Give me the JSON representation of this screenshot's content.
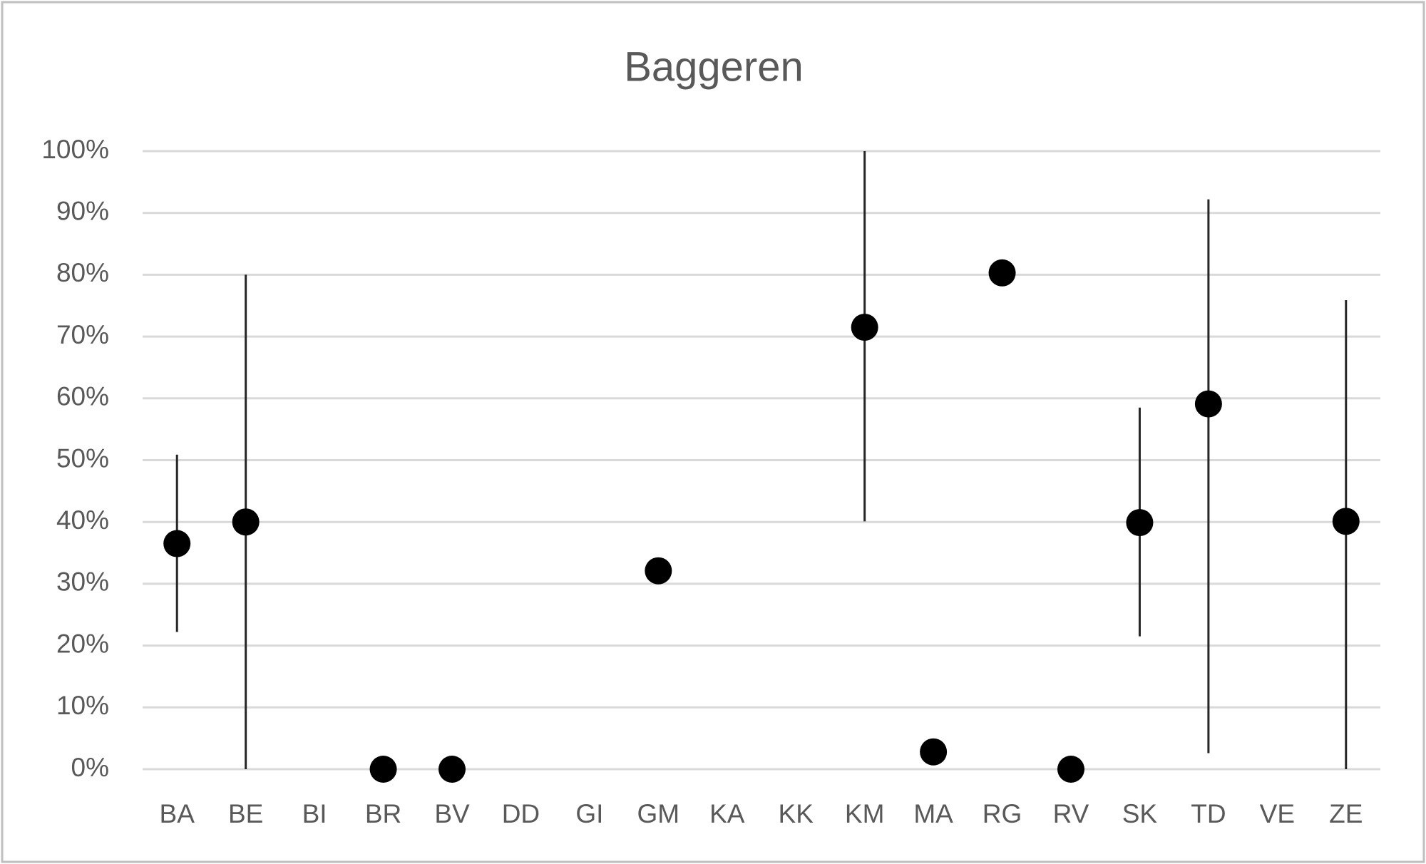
{
  "chart_data": {
    "type": "dot-errorbar",
    "title": "Baggeren",
    "categories": [
      "BA",
      "BE",
      "BI",
      "BR",
      "BV",
      "DD",
      "GI",
      "GM",
      "KA",
      "KK",
      "KM",
      "MA",
      "RG",
      "RV",
      "SK",
      "TD",
      "VE",
      "ZE"
    ],
    "values": [
      36.5,
      40,
      null,
      0,
      0,
      null,
      null,
      32.1,
      null,
      null,
      71.5,
      2.8,
      80.3,
      0,
      39.9,
      59.1,
      null,
      40.1
    ],
    "low": [
      22.2,
      0,
      null,
      null,
      null,
      null,
      null,
      null,
      null,
      null,
      40.1,
      null,
      null,
      null,
      21.5,
      2.6,
      null,
      0
    ],
    "high": [
      50.9,
      80,
      null,
      null,
      null,
      null,
      null,
      null,
      null,
      null,
      100,
      null,
      null,
      null,
      58.5,
      92.2,
      null,
      75.9
    ],
    "color": "#000000",
    "ylim": [
      0,
      100
    ],
    "yticks": [
      {
        "value": 0,
        "label": "0%"
      },
      {
        "value": 10,
        "label": "10%"
      },
      {
        "value": 20,
        "label": "20%"
      },
      {
        "value": 30,
        "label": "30%"
      },
      {
        "value": 40,
        "label": "40%"
      },
      {
        "value": 50,
        "label": "50%"
      },
      {
        "value": 60,
        "label": "60%"
      },
      {
        "value": 70,
        "label": "70%"
      },
      {
        "value": 80,
        "label": "80%"
      },
      {
        "value": 90,
        "label": "90%"
      },
      {
        "value": 100,
        "label": "100%"
      }
    ],
    "grid": true
  }
}
